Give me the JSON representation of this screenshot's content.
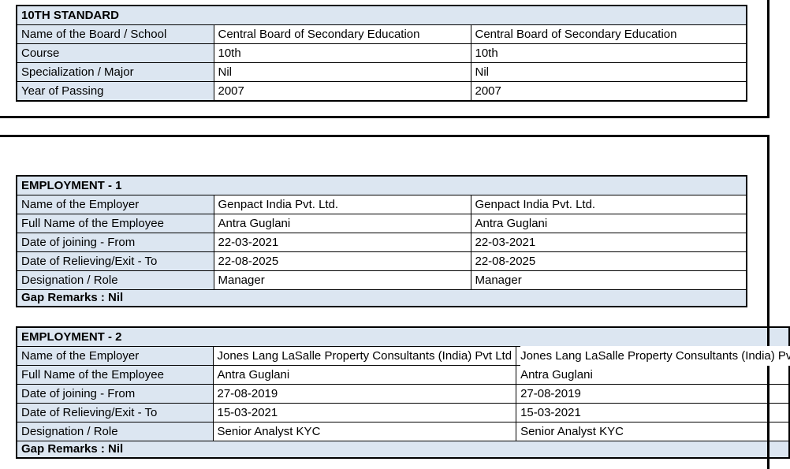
{
  "colors": {
    "header_fill": "#dce6f1",
    "border": "#000000",
    "text": "#000000"
  },
  "education": {
    "title": "10TH STANDARD",
    "rows": [
      {
        "label": "Name of the Board / School",
        "value1": "Central Board of Secondary Education",
        "value2": "Central Board of Secondary Education"
      },
      {
        "label": "Course",
        "value1": "10th",
        "value2": "10th"
      },
      {
        "label": "Specialization / Major",
        "value1": "Nil",
        "value2": "Nil"
      },
      {
        "label": "Year of Passing",
        "value1": "2007",
        "value2": "2007"
      }
    ]
  },
  "employment1": {
    "title": "EMPLOYMENT - 1",
    "rows": [
      {
        "label": "Name of the Employer",
        "value1": "Genpact India Pvt. Ltd.",
        "value2": "Genpact India Pvt. Ltd."
      },
      {
        "label": "Full Name of the Employee",
        "value1": "Antra Guglani",
        "value2": "Antra Guglani"
      },
      {
        "label": "Date of joining - From",
        "value1": "22-03-2021",
        "value2": "22-03-2021"
      },
      {
        "label": "Date of Relieving/Exit - To",
        "value1": "22-08-2025",
        "value2": "22-08-2025"
      },
      {
        "label": "Designation / Role",
        "value1": "Manager",
        "value2": "Manager"
      }
    ],
    "gap_remarks": "Gap Remarks : Nil"
  },
  "employment2": {
    "title": "EMPLOYMENT - 2",
    "rows": [
      {
        "label": "Name of the Employer",
        "value1": "Jones Lang LaSalle Property Consultants (India) Pvt Ltd",
        "value2": "Jones Lang LaSalle Property Consultants (India) Pvt Ltd"
      },
      {
        "label": "Full Name of the Employee",
        "value1": "Antra Guglani",
        "value2": "Antra Guglani"
      },
      {
        "label": "Date of joining - From",
        "value1": "27-08-2019",
        "value2": "27-08-2019"
      },
      {
        "label": "Date of Relieving/Exit - To",
        "value1": "15-03-2021",
        "value2": "15-03-2021"
      },
      {
        "label": "Designation / Role",
        "value1": "Senior Analyst KYC",
        "value2": "Senior Analyst KYC"
      }
    ],
    "gap_remarks": "Gap Remarks : Nil"
  }
}
